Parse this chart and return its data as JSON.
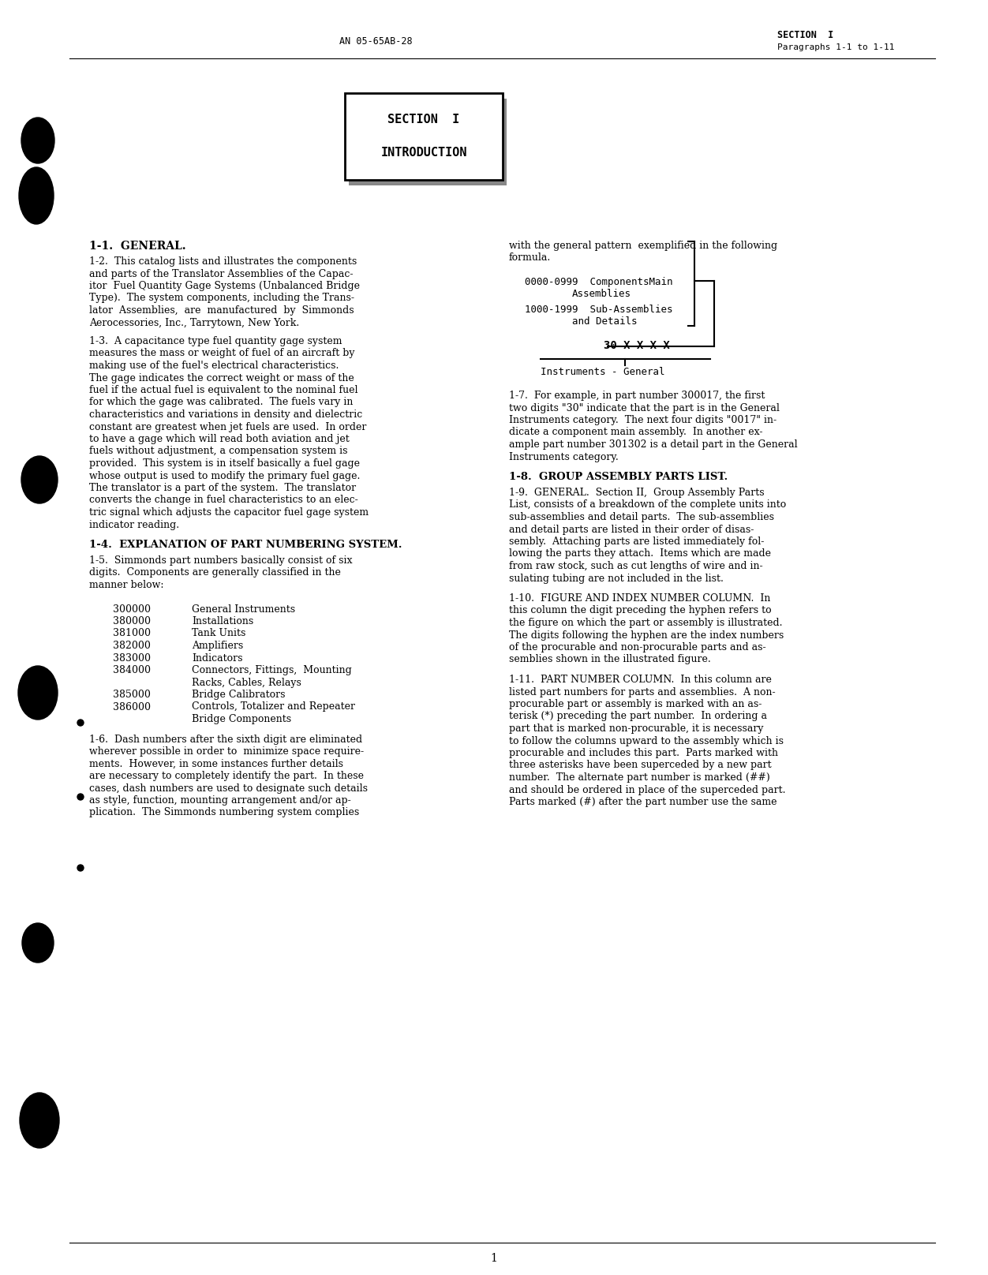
{
  "background_color": "#ffffff",
  "header_left": "AN 05-65AB-28",
  "header_right_line1": "SECTION  I",
  "header_right_line2": "Paragraphs 1-1 to 1-11",
  "box_title_line1": "SECTION  I",
  "box_title_line2": "INTRODUCTION",
  "section_title": "1-1.  GENERAL.",
  "para_1_2": "1-2.  This catalog lists and illustrates the components\nand parts of the Translator Assemblies of the Capac-\nitor  Fuel Quantity Gage Systems (Unbalanced Bridge\nType).  The system components, including the Trans-\nlator  Assemblies,  are  manufactured  by  Simmonds\nAerocessories, Inc., Tarrytown, New York.",
  "para_1_3": "1-3.  A capacitance type fuel quantity gage system\nmeasures the mass or weight of fuel of an aircraft by\nmaking use of the fuel's electrical characteristics.\nThe gage indicates the correct weight or mass of the\nfuel if the actual fuel is equivalent to the nominal fuel\nfor which the gage was calibrated.  The fuels vary in\ncharacteristics and variations in density and dielectric\nconstant are greatest when jet fuels are used.  In order\nto have a gage which will read both aviation and jet\nfuels without adjustment, a compensation system is\nprovided.  This system is in itself basically a fuel gage\nwhose output is used to modify the primary fuel gage.\nThe translator is a part of the system.  The translator\nconverts the change in fuel characteristics to an elec-\ntric signal which adjusts the capacitor fuel gage system\nindicator reading.",
  "para_1_4_title": "1-4.  EXPLANATION OF PART NUMBERING SYSTEM.",
  "para_1_5": "1-5.  Simmonds part numbers basically consist of six\ndigits.  Components are generally classified in the\nmanner below:",
  "table_data": [
    [
      "300000",
      "General Instruments"
    ],
    [
      "380000",
      "Installations"
    ],
    [
      "381000",
      "Tank Units"
    ],
    [
      "382000",
      "Amplifiers"
    ],
    [
      "383000",
      "Indicators"
    ],
    [
      "384000",
      "Connectors, Fittings,  Mounting\n            Racks, Cables, Relays"
    ],
    [
      "385000",
      "Bridge Calibrators"
    ],
    [
      "386000",
      "Controls, Totalizer and Repeater\n            Bridge Components"
    ]
  ],
  "para_1_6": "1-6.  Dash numbers after the sixth digit are eliminated\nwherever possible in order to  minimize space require-\nments.  However, in some instances further details\nare necessary to completely identify the part.  In these\ncases, dash numbers are used to designate such details\nas style, function, mounting arrangement and/or ap-\nplication.  The Simmonds numbering system complies",
  "right_col_intro": "with the general pattern  exemplified in the following\nformula.",
  "para_1_7": "1-7.  For example, in part number 300017, the first\ntwo digits \"30\" indicate that the part is in the General\nInstruments category.  The next four digits \"0017\" in-\ndicate a component main assembly.  In another ex-\nample part number 301302 is a detail part in the General\nInstruments category.",
  "para_1_8_title": "1-8.  GROUP ASSEMBLY PARTS LIST.",
  "para_1_9": "1-9.  GENERAL.  Section II,  Group Assembly Parts\nList, consists of a breakdown of the complete units into\nsub-assemblies and detail parts.  The sub-assemblies\nand detail parts are listed in their order of disas-\nsembly.  Attaching parts are listed immediately fol-\nlowing the parts they attach.  Items which are made\nfrom raw stock, such as cut lengths of wire and in-\nsulating tubing are not included in the list.",
  "para_1_10": "1-10.  FIGURE AND INDEX NUMBER COLUMN.  In\nthis column the digit preceding the hyphen refers to\nthe figure on which the part or assembly is illustrated.\nThe digits following the hyphen are the index numbers\nof the procurable and non-procurable parts and as-\nsemblies shown in the illustrated figure.",
  "para_1_11": "1-11.  PART NUMBER COLUMN.  In this column are\nlisted part numbers for parts and assemblies.  A non-\nprocurable part or assembly is marked with an as-\nterisk (*) preceding the part number.  In ordering a\npart that is marked non-procurable, it is necessary\nto follow the columns upward to the assembly which is\nprocurable and includes this part.  Parts marked with\nthree asterisks have been superceded by a new part\nnumber.  The alternate part number is marked (##)\nand should be ordered in place of the superceded part.\nParts marked (#) after the part number use the same",
  "page_number": "1"
}
